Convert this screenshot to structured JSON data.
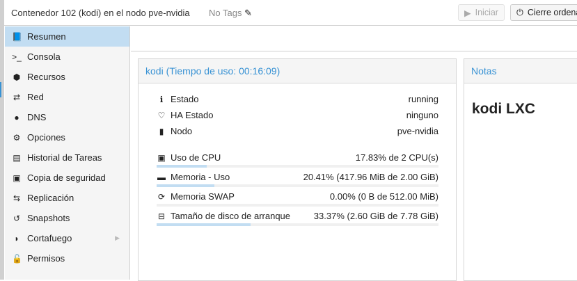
{
  "header": {
    "title": "Contenedor 102 (kodi) en el nodo pve-nvidia",
    "tags": "No Tags",
    "start_label": "Iniciar",
    "shutdown_label": "Cierre ordena"
  },
  "sidebar": {
    "items": [
      {
        "label": "Resumen",
        "icon": "book-icon",
        "glyph": "📘"
      },
      {
        "label": "Consola",
        "icon": "terminal-icon",
        "glyph": ">_"
      },
      {
        "label": "Recursos",
        "icon": "cube-icon",
        "glyph": "⬢"
      },
      {
        "label": "Red",
        "icon": "exchange-icon",
        "glyph": "⇄"
      },
      {
        "label": "DNS",
        "icon": "globe-icon",
        "glyph": "●"
      },
      {
        "label": "Opciones",
        "icon": "gear-icon",
        "glyph": "⚙"
      },
      {
        "label": "Historial de Tareas",
        "icon": "list-icon",
        "glyph": "▤"
      },
      {
        "label": "Copia de seguridad",
        "icon": "floppy-icon",
        "glyph": "▣"
      },
      {
        "label": "Replicación",
        "icon": "retweet-icon",
        "glyph": "⇆"
      },
      {
        "label": "Snapshots",
        "icon": "history-icon",
        "glyph": "↺"
      },
      {
        "label": "Cortafuego",
        "icon": "shield-icon",
        "glyph": "◗"
      },
      {
        "label": "Permisos",
        "icon": "unlock-icon",
        "glyph": "🔓"
      }
    ]
  },
  "status": {
    "title": "kodi (Tiempo de uso: 00:16:09)",
    "info": [
      {
        "label": "Estado",
        "value": "running",
        "icon": "info-icon",
        "glyph": "ℹ"
      },
      {
        "label": "HA Estado",
        "value": "ninguno",
        "icon": "heartbeat-icon",
        "glyph": "♡"
      },
      {
        "label": "Nodo",
        "value": "pve-nvidia",
        "icon": "building-icon",
        "glyph": "▮"
      }
    ],
    "usage": [
      {
        "label": "Uso de CPU",
        "value": "17.83% de 2 CPU(s)",
        "percent": 17.83,
        "icon": "cpu-icon",
        "glyph": "▣"
      },
      {
        "label": "Memoria - Uso",
        "value": "20.41% (417.96 MiB de 2.00 GiB)",
        "percent": 20.41,
        "icon": "memory-icon",
        "glyph": "▬"
      },
      {
        "label": "Memoria SWAP",
        "value": "0.00% (0 B de 512.00 MiB)",
        "percent": 0,
        "icon": "refresh-icon",
        "glyph": "⟳"
      },
      {
        "label": "Tamaño de disco de arranque",
        "value": "33.37% (2.60 GiB de 7.78 GiB)",
        "percent": 33.37,
        "icon": "hdd-icon",
        "glyph": "⊟"
      }
    ]
  },
  "notes": {
    "title": "Notas",
    "content": "kodi LXC"
  }
}
